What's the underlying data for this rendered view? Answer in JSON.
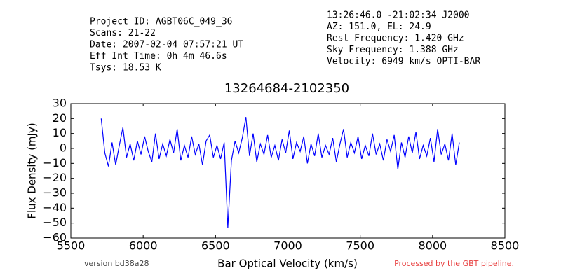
{
  "chart_data": {
    "type": "line",
    "title": "13264684-2102350",
    "header_left": [
      "Project ID: AGBT06C_049_36",
      "Scans: 21-22",
      "Date: 2007-02-04 07:57:21 UT",
      "Eff Int Time: 0h 4m 46.6s",
      "Tsys: 18.53 K"
    ],
    "header_right": [
      "13:26:46.0 -21:02:34 J2000",
      "AZ: 151.0, EL: 24.9",
      "Rest Frequency:   1.420 GHz",
      "Sky Frequency:    1.388 GHz",
      "Velocity: 6949 km/s OPTI-BAR"
    ],
    "footer_left": "version bd38a28",
    "footer_right": "Processed by the GBT pipeline.",
    "xlabel": "Bar Optical Velocity (km/s)",
    "ylabel": "Flux Density (mJy)",
    "xlim": [
      5500,
      8500
    ],
    "xticks": [
      5500,
      6000,
      6500,
      7000,
      7500,
      8000,
      8500
    ],
    "ylim": [
      -60,
      30
    ],
    "yticks": [
      {
        "value": -60,
        "label": "−60"
      },
      {
        "value": -50,
        "label": "−50"
      },
      {
        "value": -40,
        "label": "−40"
      },
      {
        "value": -30,
        "label": "−30"
      },
      {
        "value": -20,
        "label": "−20"
      },
      {
        "value": -10,
        "label": "−10"
      },
      0,
      10,
      20,
      30
    ],
    "series": [
      {
        "name": "spectrum",
        "color": "#0000ff",
        "x": [
          5710,
          5735,
          5760,
          5785,
          5810,
          5835,
          5860,
          5885,
          5910,
          5935,
          5960,
          5985,
          6010,
          6035,
          6060,
          6085,
          6110,
          6135,
          6160,
          6185,
          6210,
          6235,
          6260,
          6285,
          6310,
          6335,
          6360,
          6385,
          6410,
          6435,
          6460,
          6485,
          6510,
          6535,
          6560,
          6585,
          6610,
          6635,
          6660,
          6685,
          6710,
          6735,
          6760,
          6785,
          6810,
          6835,
          6860,
          6885,
          6910,
          6935,
          6960,
          6985,
          7010,
          7035,
          7060,
          7085,
          7110,
          7135,
          7160,
          7185,
          7210,
          7235,
          7260,
          7285,
          7310,
          7335,
          7360,
          7385,
          7410,
          7435,
          7460,
          7485,
          7510,
          7535,
          7560,
          7585,
          7610,
          7635,
          7660,
          7685,
          7710,
          7735,
          7760,
          7785,
          7810,
          7835,
          7860,
          7885,
          7910,
          7935,
          7960,
          7985,
          8010,
          8035,
          8060,
          8085,
          8110,
          8135,
          8160,
          8185
        ],
        "values": [
          20,
          -3,
          -12,
          4,
          -11,
          2,
          14,
          -6,
          3,
          -8,
          5,
          -4,
          8,
          -2,
          -9,
          10,
          -7,
          3,
          -5,
          6,
          -3,
          13,
          -8,
          2,
          -6,
          8,
          -4,
          3,
          -11,
          5,
          9,
          -6,
          2,
          -7,
          4,
          -53,
          -8,
          5,
          -3,
          7,
          21,
          -5,
          10,
          -9,
          3,
          -4,
          9,
          -6,
          2,
          -8,
          6,
          -3,
          12,
          -7,
          4,
          -2,
          8,
          -10,
          3,
          -5,
          10,
          -6,
          2,
          -4,
          7,
          -9,
          3,
          13,
          -6,
          4,
          -3,
          8,
          -7,
          2,
          -5,
          10,
          -4,
          3,
          -8,
          6,
          -2,
          9,
          -14,
          4,
          -6,
          8,
          -3,
          11,
          -7,
          2,
          -5,
          7,
          -9,
          13,
          -4,
          3,
          -8,
          10,
          -11,
          4
        ]
      }
    ]
  }
}
